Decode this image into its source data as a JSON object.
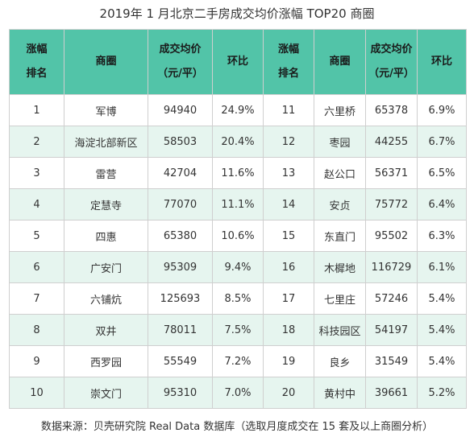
{
  "title": "2019年 1 月北京二手房成交均价涨幅 TOP20 商圈",
  "headers": {
    "rank_l1": "涨幅",
    "rank_l2": "排名",
    "area": "商圈",
    "price_l1": "成交均价",
    "price_l2": "（元/平）",
    "mom": "环比"
  },
  "rows": [
    {
      "left": {
        "rank": "1",
        "area": "军博",
        "price": "94940",
        "mom": "24.9%"
      },
      "right": {
        "rank": "11",
        "area": "六里桥",
        "price": "65378",
        "mom": "6.9%"
      }
    },
    {
      "left": {
        "rank": "2",
        "area": "海淀北部新区",
        "price": "58503",
        "mom": "20.4%"
      },
      "right": {
        "rank": "12",
        "area": "枣园",
        "price": "44255",
        "mom": "6.7%"
      }
    },
    {
      "left": {
        "rank": "3",
        "area": "雷营",
        "price": "42704",
        "mom": "11.6%"
      },
      "right": {
        "rank": "13",
        "area": "赵公口",
        "price": "56371",
        "mom": "6.5%"
      }
    },
    {
      "left": {
        "rank": "4",
        "area": "定慧寺",
        "price": "77070",
        "mom": "11.1%"
      },
      "right": {
        "rank": "14",
        "area": "安贞",
        "price": "75772",
        "mom": "6.4%"
      }
    },
    {
      "left": {
        "rank": "5",
        "area": "四惠",
        "price": "65380",
        "mom": "10.6%"
      },
      "right": {
        "rank": "15",
        "area": "东直门",
        "price": "95502",
        "mom": "6.3%"
      }
    },
    {
      "left": {
        "rank": "6",
        "area": "广安门",
        "price": "95309",
        "mom": "9.4%"
      },
      "right": {
        "rank": "16",
        "area": "木樨地",
        "price": "116729",
        "mom": "6.1%"
      }
    },
    {
      "left": {
        "rank": "7",
        "area": "六铺炕",
        "price": "125693",
        "mom": "8.5%"
      },
      "right": {
        "rank": "17",
        "area": "七里庄",
        "price": "57246",
        "mom": "5.4%"
      }
    },
    {
      "left": {
        "rank": "8",
        "area": "双井",
        "price": "78011",
        "mom": "7.5%"
      },
      "right": {
        "rank": "18",
        "area": "科技园区",
        "price": "54197",
        "mom": "5.4%"
      }
    },
    {
      "left": {
        "rank": "9",
        "area": "西罗园",
        "price": "55549",
        "mom": "7.2%"
      },
      "right": {
        "rank": "19",
        "area": "良乡",
        "price": "31549",
        "mom": "5.4%"
      }
    },
    {
      "left": {
        "rank": "10",
        "area": "崇文门",
        "price": "95310",
        "mom": "7.0%"
      },
      "right": {
        "rank": "20",
        "area": "黄村中",
        "price": "39661",
        "mom": "5.2%"
      }
    }
  ],
  "footnote": "数据来源：贝壳研究院 Real Data 数据库（选取月度成交在 15 套及以上商圈分析）",
  "colors": {
    "header_bg": "#52c4a8",
    "stripe_bg": "#e6f5ef",
    "border": "#cfcfcf"
  }
}
